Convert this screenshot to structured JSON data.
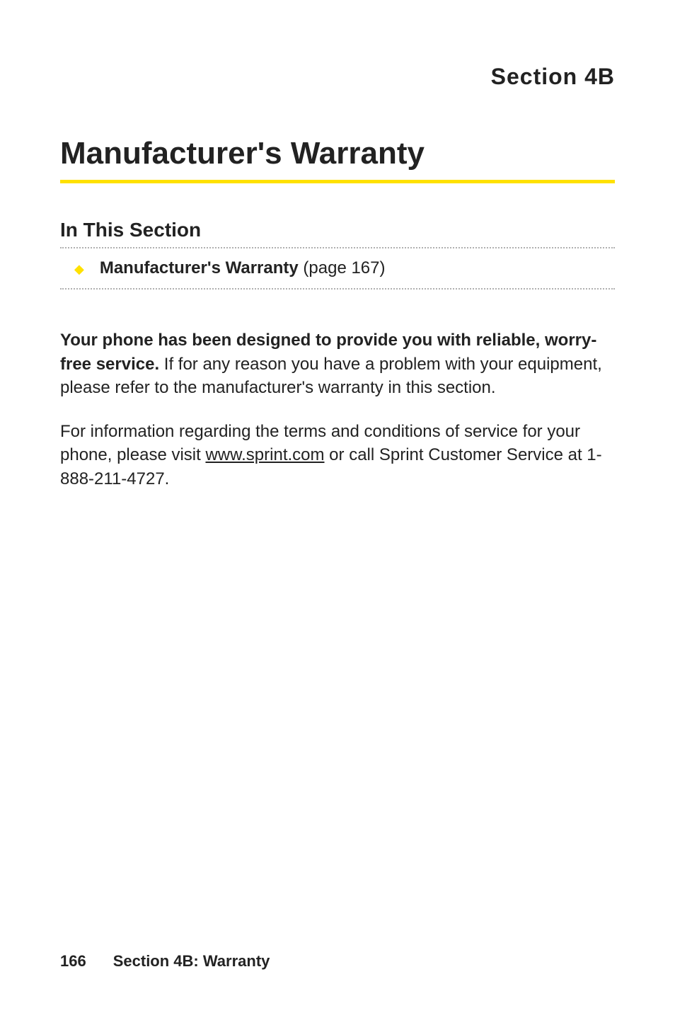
{
  "section_label": "Section 4B",
  "page_title": "Manufacturer's Warranty",
  "subsection_heading": "In This Section",
  "bullet": {
    "label_bold": "Manufacturer's Warranty",
    "label_rest": " (page 167)"
  },
  "paragraph1": {
    "bold_part": "Your phone has been designed to provide you with reliable, worry-free service.",
    "rest": " If for any reason you have a problem with your equipment, please refer to the manufacturer's warranty in this section."
  },
  "paragraph2": {
    "part1": "For information regarding the terms and conditions of service for your phone, please visit ",
    "link": "www.sprint.com",
    "part2": " or call Sprint Customer Service at 1-888-211-4727."
  },
  "footer": {
    "page_number": "166",
    "label": "Section 4B: Warranty"
  },
  "colors": {
    "accent_yellow": "#ffe100",
    "text_color": "#222222",
    "dotted_color": "#b0b0b0",
    "background": "#ffffff"
  }
}
